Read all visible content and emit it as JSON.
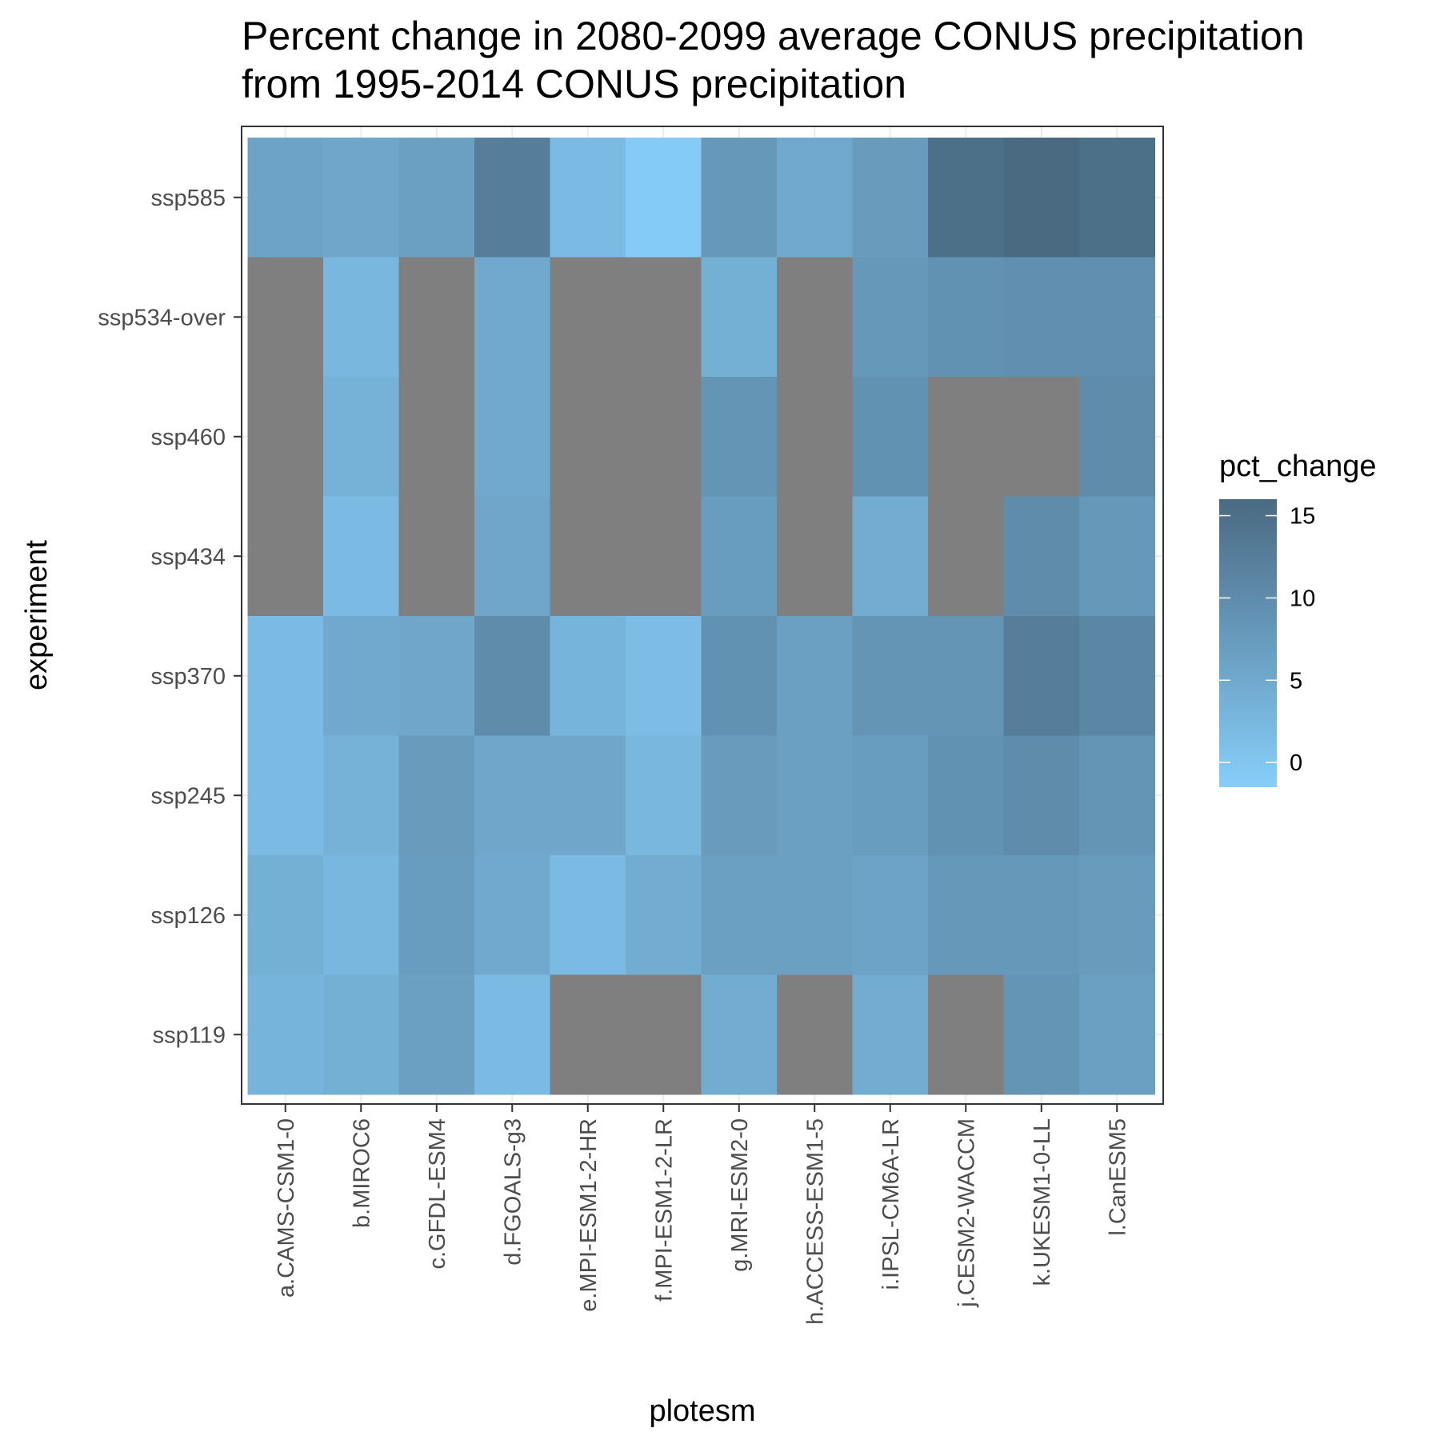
{
  "chart_data": {
    "type": "heatmap",
    "title": [
      "Percent change in 2080-2099 average CONUS precipitation",
      "from 1995-2014 CONUS precipitation"
    ],
    "xlabel": "plotesm",
    "ylabel": "experiment",
    "x": [
      "a.CAMS-CSM1-0",
      "b.MIROC6",
      "c.GFDL-ESM4",
      "d.FGOALS-g3",
      "e.MPI-ESM1-2-HR",
      "f.MPI-ESM1-2-LR",
      "g.MRI-ESM2-0",
      "h.ACCESS-ESM1-5",
      "i.IPSL-CM6A-LR",
      "j.CESM2-WACCM",
      "k.UKESM1-0-LL",
      "l.CanESM5"
    ],
    "y": [
      "ssp585",
      "ssp534-over",
      "ssp460",
      "ssp434",
      "ssp370",
      "ssp245",
      "ssp126",
      "ssp119"
    ],
    "values": [
      [
        6,
        5.5,
        6.5,
        12.5,
        2,
        -1,
        8,
        5,
        7.5,
        15,
        16,
        15
      ],
      [
        null,
        2.5,
        null,
        5,
        null,
        null,
        4,
        null,
        8,
        9,
        9.5,
        9.5
      ],
      [
        null,
        3.5,
        null,
        5,
        null,
        null,
        8.5,
        null,
        9,
        null,
        null,
        10
      ],
      [
        null,
        2,
        null,
        5.5,
        null,
        null,
        7,
        null,
        4.5,
        null,
        10,
        8
      ],
      [
        2,
        5,
        5.5,
        10,
        3,
        1.5,
        9,
        6.5,
        8.5,
        8.5,
        12.5,
        11
      ],
      [
        2,
        3.5,
        7.5,
        5.5,
        5.5,
        2.5,
        7.5,
        6.5,
        7,
        9,
        10,
        8.5
      ],
      [
        4,
        2.5,
        7,
        5,
        2,
        4.5,
        6.5,
        6.5,
        6,
        8,
        8,
        7.5
      ],
      [
        3,
        4,
        6.5,
        2,
        null,
        null,
        4.5,
        null,
        4.5,
        null,
        8.5,
        6.5
      ]
    ],
    "missing_color": "#7f7f7f",
    "colorbar": {
      "title": "pct_change",
      "ticks": [
        0,
        5,
        10,
        15
      ],
      "range": [
        -1.5,
        16
      ],
      "low_color": "#87cefa",
      "high_color": "#4a6a82"
    },
    "grid": true,
    "legend_position": "right"
  }
}
